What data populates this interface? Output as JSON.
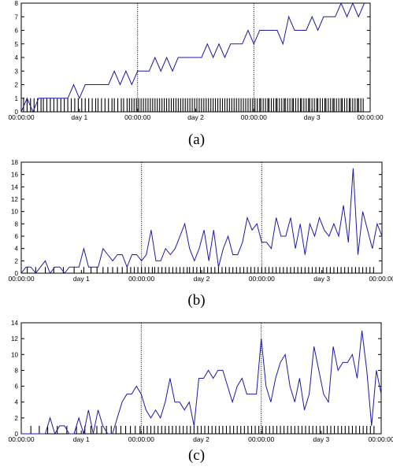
{
  "chart_data": [
    {
      "type": "line",
      "caption": "(a)",
      "ylim": [
        0,
        8
      ],
      "yticks": [
        "0",
        "1",
        "2",
        "3",
        "4",
        "5",
        "6",
        "7",
        "8"
      ],
      "xlim": [
        0,
        3
      ],
      "xticks": [
        {
          "x": 0,
          "label": "00:00:00"
        },
        {
          "x": 0.5,
          "label": "day 1"
        },
        {
          "x": 1,
          "label": "00:00:00"
        },
        {
          "x": 1.5,
          "label": "day 2"
        },
        {
          "x": 2,
          "label": "00:00:00"
        },
        {
          "x": 2.5,
          "label": "day 3"
        },
        {
          "x": 3,
          "label": "00:00:00"
        }
      ],
      "day_boundaries": [
        1,
        2
      ],
      "rug_height": 1,
      "series": [
        {
          "color": "#1a1aa6",
          "x": [
            0.0,
            0.05,
            0.1,
            0.15,
            0.2,
            0.25,
            0.3,
            0.35,
            0.4,
            0.45,
            0.5,
            0.55,
            0.6,
            0.65,
            0.7,
            0.75,
            0.8,
            0.85,
            0.9,
            0.95,
            1.0,
            1.05,
            1.1,
            1.15,
            1.2,
            1.25,
            1.3,
            1.35,
            1.4,
            1.45,
            1.5,
            1.55,
            1.6,
            1.65,
            1.7,
            1.75,
            1.8,
            1.85,
            1.9,
            1.95,
            2.0,
            2.05,
            2.1,
            2.15,
            2.2,
            2.25,
            2.3,
            2.35,
            2.4,
            2.45,
            2.5,
            2.55,
            2.6,
            2.65,
            2.7,
            2.75,
            2.8,
            2.85,
            2.9,
            2.95
          ],
          "y": [
            0,
            1,
            0,
            1,
            1,
            1,
            1,
            1,
            1,
            2,
            1,
            2,
            2,
            2,
            2,
            2,
            3,
            2,
            3,
            2,
            3,
            3,
            3,
            4,
            3,
            4,
            3,
            4,
            4,
            4,
            4,
            4,
            5,
            4,
            5,
            4,
            5,
            5,
            5,
            6,
            5,
            6,
            6,
            6,
            6,
            5,
            7,
            6,
            6,
            6,
            7,
            6,
            7,
            7,
            7,
            8,
            7,
            8,
            7,
            8
          ]
        }
      ],
      "rug": [
        0.02,
        0.05,
        0.08,
        0.11,
        0.14,
        0.17,
        0.19,
        0.22,
        0.25,
        0.28,
        0.31,
        0.34,
        0.37,
        0.4,
        0.43,
        0.46,
        0.49,
        0.52,
        0.55,
        0.58,
        0.61,
        0.64,
        0.66,
        0.69,
        0.72,
        0.75,
        0.78,
        0.8,
        0.83,
        0.86,
        0.88,
        0.91,
        0.93,
        0.95,
        0.97,
        0.99,
        1.01,
        1.03,
        1.05,
        1.07,
        1.09,
        1.11,
        1.13,
        1.15,
        1.17,
        1.19,
        1.21,
        1.23,
        1.25,
        1.27,
        1.29,
        1.31,
        1.33,
        1.35,
        1.37,
        1.39,
        1.41,
        1.43,
        1.45,
        1.47,
        1.49,
        1.51,
        1.53,
        1.55,
        1.57,
        1.59,
        1.61,
        1.63,
        1.65,
        1.67,
        1.69,
        1.71,
        1.73,
        1.75,
        1.77,
        1.79,
        1.81,
        1.83,
        1.85,
        1.87,
        1.89,
        1.91,
        1.93,
        1.95,
        1.97,
        1.99,
        2.01,
        2.03,
        2.05,
        2.06,
        2.08,
        2.1,
        2.12,
        2.13,
        2.15,
        2.17,
        2.19,
        2.2,
        2.22,
        2.24,
        2.26,
        2.27,
        2.29,
        2.31,
        2.33,
        2.34,
        2.36,
        2.38,
        2.4,
        2.41,
        2.43,
        2.45,
        2.47,
        2.48,
        2.5,
        2.52,
        2.54,
        2.55,
        2.57,
        2.59,
        2.61,
        2.62,
        2.64,
        2.66,
        2.68,
        2.69,
        2.71,
        2.73,
        2.75,
        2.76,
        2.78,
        2.8,
        2.82,
        2.83,
        2.85,
        2.87,
        2.89,
        2.9,
        2.92,
        2.94
      ]
    },
    {
      "type": "line",
      "caption": "(b)",
      "ylim": [
        0,
        18
      ],
      "yticks": [
        "0",
        "2",
        "4",
        "6",
        "8",
        "10",
        "12",
        "14",
        "16",
        "18"
      ],
      "xlim": [
        0,
        3
      ],
      "xticks": [
        {
          "x": 0,
          "label": "00:00:00"
        },
        {
          "x": 0.5,
          "label": "day 1"
        },
        {
          "x": 1,
          "label": "00:00:00"
        },
        {
          "x": 1.5,
          "label": "day 2"
        },
        {
          "x": 2,
          "label": "00:00:00"
        },
        {
          "x": 2.5,
          "label": "day 3"
        },
        {
          "x": 3,
          "label": "00:00:00"
        }
      ],
      "day_boundaries": [
        1,
        2
      ],
      "rug_height": 1,
      "series": [
        {
          "color": "#1a1aa6",
          "x": [
            0.0,
            0.04,
            0.08,
            0.12,
            0.16,
            0.2,
            0.24,
            0.28,
            0.32,
            0.36,
            0.4,
            0.44,
            0.48,
            0.52,
            0.56,
            0.6,
            0.64,
            0.68,
            0.72,
            0.76,
            0.8,
            0.84,
            0.88,
            0.92,
            0.96,
            1.0,
            1.04,
            1.08,
            1.12,
            1.16,
            1.2,
            1.24,
            1.28,
            1.32,
            1.36,
            1.4,
            1.44,
            1.48,
            1.52,
            1.56,
            1.6,
            1.64,
            1.68,
            1.72,
            1.76,
            1.8,
            1.84,
            1.88,
            1.92,
            1.96,
            2.0,
            2.04,
            2.08,
            2.12,
            2.16,
            2.2,
            2.24,
            2.28,
            2.32,
            2.36,
            2.4,
            2.44,
            2.48,
            2.52,
            2.56,
            2.6,
            2.64,
            2.68,
            2.72,
            2.76,
            2.8,
            2.84,
            2.88,
            2.92,
            2.96,
            3.0
          ],
          "y": [
            0,
            1,
            1,
            0,
            1,
            2,
            0,
            1,
            1,
            0,
            1,
            1,
            1,
            4,
            1,
            1,
            1,
            4,
            3,
            2,
            3,
            3,
            1,
            3,
            3,
            2,
            3,
            7,
            2,
            2,
            4,
            3,
            4,
            6,
            8,
            4,
            2,
            4,
            7,
            2,
            7,
            1,
            4,
            6,
            3,
            3,
            5,
            9,
            7,
            8,
            5,
            5,
            4,
            9,
            6,
            6,
            9,
            4,
            8,
            3,
            8,
            6,
            9,
            7,
            6,
            8,
            6,
            11,
            5,
            17,
            3,
            10,
            7,
            4,
            8,
            6
          ]
        }
      ],
      "rug": [
        0.05,
        0.12,
        0.2,
        0.27,
        0.35,
        0.44,
        0.52,
        0.58,
        0.63,
        0.68,
        0.72,
        0.76,
        0.8,
        0.84,
        0.88,
        0.91,
        0.94,
        0.97,
        1.0,
        1.03,
        1.06,
        1.09,
        1.11,
        1.14,
        1.17,
        1.2,
        1.23,
        1.26,
        1.29,
        1.32,
        1.35,
        1.38,
        1.4,
        1.43,
        1.46,
        1.49,
        1.52,
        1.55,
        1.58,
        1.61,
        1.64,
        1.67,
        1.7,
        1.73,
        1.76,
        1.79,
        1.82,
        1.85,
        1.88,
        1.91,
        1.94,
        1.97,
        2.0,
        2.03,
        2.06,
        2.09,
        2.12,
        2.15,
        2.18,
        2.21,
        2.24,
        2.27,
        2.3,
        2.33,
        2.36,
        2.39,
        2.42,
        2.45,
        2.48,
        2.51,
        2.54,
        2.57,
        2.6,
        2.63,
        2.66,
        2.69,
        2.72,
        2.75,
        2.78,
        2.81,
        2.84,
        2.87,
        2.9,
        2.93
      ]
    },
    {
      "type": "line",
      "caption": "(c)",
      "ylim": [
        0,
        14
      ],
      "yticks": [
        "0",
        "2",
        "4",
        "6",
        "8",
        "10",
        "12",
        "14"
      ],
      "xlim": [
        0,
        3
      ],
      "xticks": [
        {
          "x": 0,
          "label": "00:00:00"
        },
        {
          "x": 0.5,
          "label": "day 1"
        },
        {
          "x": 1,
          "label": "00:00:00"
        },
        {
          "x": 1.5,
          "label": "day 2"
        },
        {
          "x": 2,
          "label": "00:00:00"
        },
        {
          "x": 2.5,
          "label": "day 3"
        },
        {
          "x": 3,
          "label": "00:00:00"
        }
      ],
      "day_boundaries": [
        1,
        2
      ],
      "rug_height": 1,
      "series": [
        {
          "color": "#1a1aa6",
          "x": [
            0.0,
            0.04,
            0.08,
            0.12,
            0.16,
            0.2,
            0.24,
            0.28,
            0.32,
            0.36,
            0.4,
            0.44,
            0.48,
            0.52,
            0.56,
            0.6,
            0.64,
            0.68,
            0.72,
            0.76,
            0.8,
            0.84,
            0.88,
            0.92,
            0.96,
            1.0,
            1.04,
            1.08,
            1.12,
            1.16,
            1.2,
            1.24,
            1.28,
            1.32,
            1.36,
            1.4,
            1.44,
            1.48,
            1.52,
            1.56,
            1.6,
            1.64,
            1.68,
            1.72,
            1.76,
            1.8,
            1.84,
            1.88,
            1.92,
            1.96,
            2.0,
            2.04,
            2.08,
            2.12,
            2.16,
            2.2,
            2.24,
            2.28,
            2.32,
            2.36,
            2.4,
            2.44,
            2.48,
            2.52,
            2.56,
            2.6,
            2.64,
            2.68,
            2.72,
            2.76,
            2.8,
            2.84,
            2.88,
            2.92,
            2.96,
            3.0
          ],
          "y": [
            0,
            0,
            0,
            0,
            0,
            0,
            2,
            0,
            1,
            1,
            0,
            0,
            2,
            0,
            3,
            0,
            3,
            1,
            0,
            0,
            2,
            4,
            5,
            5,
            6,
            5,
            3,
            2,
            3,
            2,
            4,
            7,
            4,
            4,
            3,
            4,
            1,
            7,
            7,
            8,
            7,
            8,
            8,
            6,
            4,
            6,
            7,
            5,
            5,
            5,
            12,
            6,
            4,
            7,
            9,
            10,
            6,
            4,
            7,
            3,
            5,
            11,
            8,
            5,
            4,
            11,
            8,
            9,
            9,
            10,
            7,
            13,
            8,
            1,
            8,
            5
          ]
        }
      ],
      "rug": [
        0.08,
        0.15,
        0.22,
        0.3,
        0.38,
        0.46,
        0.53,
        0.58,
        0.63,
        0.67,
        0.71,
        0.75,
        0.79,
        0.83,
        0.87,
        0.91,
        0.95,
        0.99,
        1.02,
        1.05,
        1.08,
        1.11,
        1.14,
        1.17,
        1.2,
        1.23,
        1.26,
        1.29,
        1.32,
        1.35,
        1.38,
        1.41,
        1.44,
        1.47,
        1.5,
        1.53,
        1.56,
        1.59,
        1.62,
        1.65,
        1.68,
        1.71,
        1.74,
        1.77,
        1.8,
        1.83,
        1.86,
        1.89,
        1.92,
        1.95,
        1.98,
        2.01,
        2.04,
        2.07,
        2.1,
        2.13,
        2.16,
        2.19,
        2.22,
        2.25,
        2.28,
        2.31,
        2.34,
        2.37,
        2.4,
        2.43,
        2.46,
        2.49,
        2.52,
        2.55,
        2.58,
        2.61,
        2.64,
        2.67,
        2.7,
        2.73,
        2.76,
        2.79,
        2.82,
        2.85,
        2.88,
        2.91,
        2.94
      ]
    }
  ]
}
